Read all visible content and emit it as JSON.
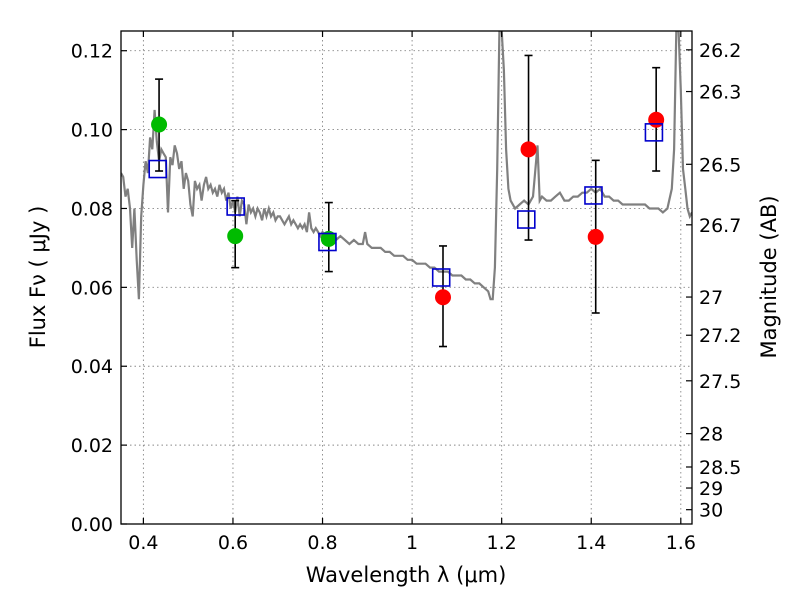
{
  "chart_data": {
    "type": "scatter",
    "xlabel": "Wavelength  λ (μm)",
    "ylabel": "Flux  Fν  ( μJy )",
    "y2label": "Magnitude (AB)",
    "xlim": [
      0.35,
      1.625
    ],
    "ylim": [
      0.0,
      0.125
    ],
    "grid": true,
    "x_ticks": [
      0.4,
      0.6,
      0.8,
      1.0,
      1.2,
      1.4,
      1.6
    ],
    "x_tick_labels": [
      "0.4",
      "0.6",
      "0.8",
      "1",
      "1.2",
      "1.4",
      "1.6"
    ],
    "y_ticks": [
      0.0,
      0.02,
      0.04,
      0.06,
      0.08,
      0.1,
      0.12
    ],
    "y_tick_labels": [
      "0.00",
      "0.02",
      "0.04",
      "0.06",
      "0.08",
      "0.10",
      "0.12"
    ],
    "mag_ticks": [
      26.2,
      26.3,
      26.5,
      26.7,
      27,
      27.2,
      27.5,
      28,
      28.5,
      29,
      30
    ],
    "mag_tick_labels": [
      "26.2",
      "26.3",
      "26.5",
      "26.7",
      "27",
      "27.2",
      "27.5",
      "28",
      "28.5",
      "29",
      "30"
    ],
    "colors": {
      "model": "#808080",
      "green": "#00bb00",
      "red": "#ff0000",
      "box": "#0000cc",
      "errorbar": "#000000",
      "grid": "#888888"
    },
    "model_spectrum": [
      [
        0.35,
        0.089
      ],
      [
        0.355,
        0.088
      ],
      [
        0.36,
        0.083
      ],
      [
        0.365,
        0.085
      ],
      [
        0.37,
        0.08
      ],
      [
        0.375,
        0.07
      ],
      [
        0.38,
        0.08
      ],
      [
        0.385,
        0.067
      ],
      [
        0.39,
        0.057
      ],
      [
        0.395,
        0.078
      ],
      [
        0.4,
        0.086
      ],
      [
        0.405,
        0.092
      ],
      [
        0.41,
        0.089
      ],
      [
        0.415,
        0.098
      ],
      [
        0.42,
        0.095
      ],
      [
        0.425,
        0.105
      ],
      [
        0.43,
        0.097
      ],
      [
        0.435,
        0.092
      ],
      [
        0.44,
        0.095
      ],
      [
        0.445,
        0.094
      ],
      [
        0.45,
        0.093
      ],
      [
        0.455,
        0.079
      ],
      [
        0.46,
        0.093
      ],
      [
        0.465,
        0.091
      ],
      [
        0.47,
        0.096
      ],
      [
        0.475,
        0.094
      ],
      [
        0.48,
        0.09
      ],
      [
        0.485,
        0.092
      ],
      [
        0.49,
        0.085
      ],
      [
        0.495,
        0.089
      ],
      [
        0.5,
        0.087
      ],
      [
        0.505,
        0.081
      ],
      [
        0.51,
        0.078
      ],
      [
        0.515,
        0.087
      ],
      [
        0.52,
        0.085
      ],
      [
        0.525,
        0.086
      ],
      [
        0.53,
        0.082
      ],
      [
        0.535,
        0.086
      ],
      [
        0.54,
        0.088
      ],
      [
        0.545,
        0.085
      ],
      [
        0.55,
        0.086
      ],
      [
        0.555,
        0.084
      ],
      [
        0.56,
        0.085
      ],
      [
        0.565,
        0.083
      ],
      [
        0.57,
        0.086
      ],
      [
        0.575,
        0.084
      ],
      [
        0.58,
        0.085
      ],
      [
        0.585,
        0.082
      ],
      [
        0.59,
        0.084
      ],
      [
        0.595,
        0.08
      ],
      [
        0.6,
        0.082
      ],
      [
        0.605,
        0.079
      ],
      [
        0.61,
        0.083
      ],
      [
        0.615,
        0.078
      ],
      [
        0.62,
        0.082
      ],
      [
        0.625,
        0.081
      ],
      [
        0.63,
        0.076
      ],
      [
        0.635,
        0.081
      ],
      [
        0.64,
        0.079
      ],
      [
        0.645,
        0.08
      ],
      [
        0.65,
        0.078
      ],
      [
        0.655,
        0.08
      ],
      [
        0.66,
        0.079
      ],
      [
        0.665,
        0.077
      ],
      [
        0.67,
        0.08
      ],
      [
        0.675,
        0.078
      ],
      [
        0.68,
        0.08
      ],
      [
        0.685,
        0.078
      ],
      [
        0.69,
        0.079
      ],
      [
        0.695,
        0.077
      ],
      [
        0.7,
        0.078
      ],
      [
        0.705,
        0.078
      ],
      [
        0.71,
        0.077
      ],
      [
        0.715,
        0.076
      ],
      [
        0.72,
        0.077
      ],
      [
        0.725,
        0.078
      ],
      [
        0.73,
        0.076
      ],
      [
        0.735,
        0.077
      ],
      [
        0.74,
        0.076
      ],
      [
        0.745,
        0.075
      ],
      [
        0.75,
        0.076
      ],
      [
        0.755,
        0.075
      ],
      [
        0.76,
        0.076
      ],
      [
        0.765,
        0.074
      ],
      [
        0.77,
        0.079
      ],
      [
        0.775,
        0.075
      ],
      [
        0.78,
        0.074
      ],
      [
        0.785,
        0.075
      ],
      [
        0.79,
        0.074
      ],
      [
        0.795,
        0.073
      ],
      [
        0.8,
        0.074
      ],
      [
        0.81,
        0.073
      ],
      [
        0.82,
        0.073
      ],
      [
        0.83,
        0.072
      ],
      [
        0.84,
        0.073
      ],
      [
        0.85,
        0.072
      ],
      [
        0.86,
        0.071
      ],
      [
        0.87,
        0.072
      ],
      [
        0.88,
        0.071
      ],
      [
        0.89,
        0.071
      ],
      [
        0.895,
        0.074
      ],
      [
        0.9,
        0.071
      ],
      [
        0.91,
        0.07
      ],
      [
        0.92,
        0.07
      ],
      [
        0.93,
        0.07
      ],
      [
        0.94,
        0.069
      ],
      [
        0.95,
        0.069
      ],
      [
        0.96,
        0.068
      ],
      [
        0.97,
        0.068
      ],
      [
        0.98,
        0.068
      ],
      [
        0.99,
        0.067
      ],
      [
        1.0,
        0.067
      ],
      [
        1.01,
        0.066
      ],
      [
        1.02,
        0.066
      ],
      [
        1.03,
        0.066
      ],
      [
        1.04,
        0.065
      ],
      [
        1.05,
        0.065
      ],
      [
        1.06,
        0.064
      ],
      [
        1.07,
        0.064
      ],
      [
        1.08,
        0.064
      ],
      [
        1.09,
        0.063
      ],
      [
        1.1,
        0.063
      ],
      [
        1.11,
        0.063
      ],
      [
        1.12,
        0.062
      ],
      [
        1.13,
        0.062
      ],
      [
        1.14,
        0.061
      ],
      [
        1.15,
        0.061
      ],
      [
        1.16,
        0.06
      ],
      [
        1.17,
        0.059
      ],
      [
        1.175,
        0.057
      ],
      [
        1.18,
        0.057
      ],
      [
        1.185,
        0.065
      ],
      [
        1.19,
        0.09
      ],
      [
        1.195,
        0.125
      ],
      [
        1.2,
        0.125
      ],
      [
        1.205,
        0.115
      ],
      [
        1.21,
        0.095
      ],
      [
        1.215,
        0.085
      ],
      [
        1.22,
        0.082
      ],
      [
        1.23,
        0.08
      ],
      [
        1.24,
        0.081
      ],
      [
        1.25,
        0.082
      ],
      [
        1.26,
        0.081
      ],
      [
        1.27,
        0.083
      ],
      [
        1.28,
        0.096
      ],
      [
        1.285,
        0.082
      ],
      [
        1.29,
        0.083
      ],
      [
        1.3,
        0.082
      ],
      [
        1.31,
        0.082
      ],
      [
        1.32,
        0.083
      ],
      [
        1.33,
        0.084
      ],
      [
        1.34,
        0.082
      ],
      [
        1.35,
        0.082
      ],
      [
        1.36,
        0.083
      ],
      [
        1.37,
        0.083
      ],
      [
        1.38,
        0.084
      ],
      [
        1.39,
        0.084
      ],
      [
        1.4,
        0.085
      ],
      [
        1.41,
        0.084
      ],
      [
        1.42,
        0.085
      ],
      [
        1.43,
        0.083
      ],
      [
        1.44,
        0.083
      ],
      [
        1.45,
        0.082
      ],
      [
        1.46,
        0.082
      ],
      [
        1.47,
        0.081
      ],
      [
        1.48,
        0.081
      ],
      [
        1.49,
        0.081
      ],
      [
        1.5,
        0.081
      ],
      [
        1.51,
        0.081
      ],
      [
        1.52,
        0.081
      ],
      [
        1.53,
        0.08
      ],
      [
        1.54,
        0.08
      ],
      [
        1.55,
        0.08
      ],
      [
        1.56,
        0.079
      ],
      [
        1.57,
        0.08
      ],
      [
        1.58,
        0.085
      ],
      [
        1.585,
        0.095
      ],
      [
        1.59,
        0.125
      ],
      [
        1.595,
        0.125
      ],
      [
        1.6,
        0.11
      ],
      [
        1.605,
        0.09
      ],
      [
        1.61,
        0.085
      ],
      [
        1.615,
        0.08
      ],
      [
        1.62,
        0.078
      ],
      [
        1.625,
        0.079
      ]
    ],
    "series": [
      {
        "marker": "circle",
        "color": "green",
        "points": [
          [
            0.435,
            0.1013
          ],
          [
            0.605,
            0.073
          ],
          [
            0.814,
            0.0723
          ]
        ]
      },
      {
        "marker": "circle",
        "color": "red",
        "points": [
          [
            1.069,
            0.0575
          ],
          [
            1.26,
            0.095
          ],
          [
            1.41,
            0.0728
          ],
          [
            1.545,
            0.1025
          ]
        ]
      },
      {
        "marker": "open-square",
        "color": "box",
        "points": [
          [
            0.432,
            0.09
          ],
          [
            0.606,
            0.0805
          ],
          [
            0.811,
            0.0715
          ],
          [
            1.065,
            0.0625
          ],
          [
            1.255,
            0.0772
          ],
          [
            1.405,
            0.0833
          ],
          [
            1.54,
            0.0993
          ]
        ]
      }
    ],
    "error_bars": [
      {
        "x": 0.435,
        "low": 0.0895,
        "high": 0.1128
      },
      {
        "x": 0.605,
        "low": 0.065,
        "high": 0.082
      },
      {
        "x": 0.814,
        "low": 0.064,
        "high": 0.0815
      },
      {
        "x": 1.069,
        "low": 0.045,
        "high": 0.0705
      },
      {
        "x": 1.26,
        "low": 0.072,
        "high": 0.1188
      },
      {
        "x": 1.41,
        "low": 0.0535,
        "high": 0.0922
      },
      {
        "x": 1.545,
        "low": 0.0895,
        "high": 0.1157
      }
    ]
  }
}
